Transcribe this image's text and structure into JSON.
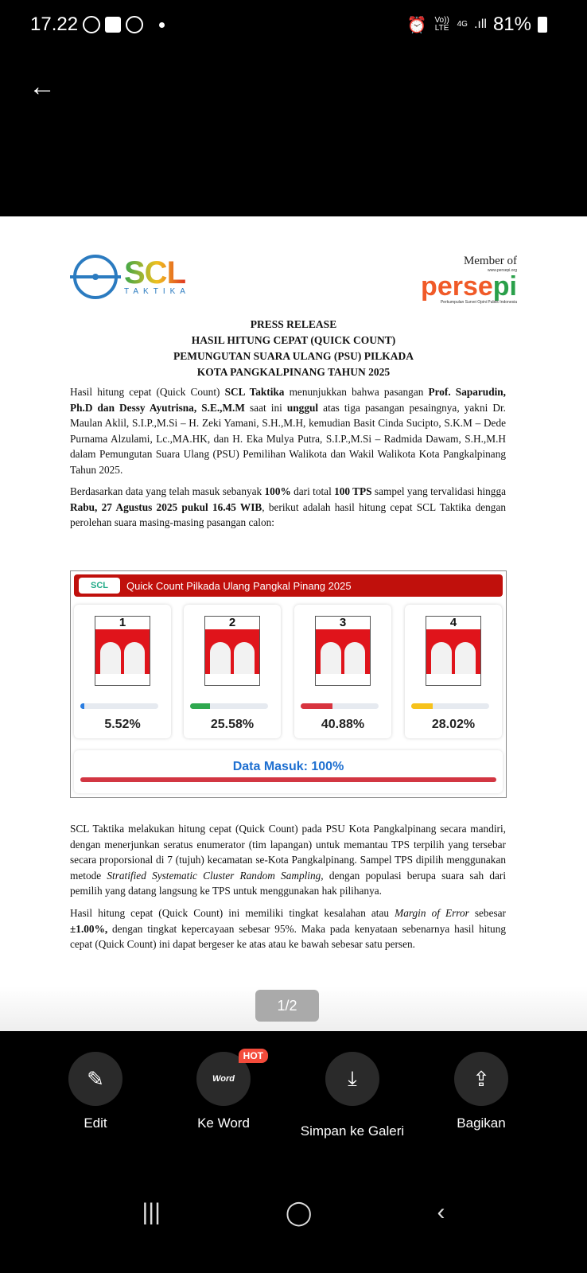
{
  "status_bar": {
    "time": "17.22",
    "network": "4G",
    "volte": "Vo)) LTE",
    "battery": "81%"
  },
  "doc": {
    "logo_left": {
      "name": "SCL",
      "sub": "TAKTIKA"
    },
    "logo_right": {
      "member": "Member of",
      "name_a": "perse",
      "name_b": "pi",
      "url": "www.persepi.org",
      "sub": "Perkumpulan Survei Opini Publik Indonesia"
    },
    "title": [
      "PRESS RELEASE",
      "HASIL HITUNG CEPAT (QUICK COUNT)",
      "PEMUNGUTAN SUARA ULANG (PSU) PILKADA",
      "KOTA PANGKALPINANG TAHUN 2025"
    ],
    "p1": {
      "a": "Hasil hitung cepat (Quick Count) ",
      "b": "SCL Taktika",
      "c": " menunjukkan bahwa pasangan ",
      "d": "Prof. Saparudin, Ph.D dan Dessy Ayutrisna, S.E.,M.M",
      "e": " saat ini ",
      "f": "unggul",
      "g": " atas tiga pasangan pesaingnya, yakni Dr. Maulan Aklil, S.I.P.,M.Si – H. Zeki Yamani, S.H.,M.H, kemudian Basit Cinda Sucipto, S.K.M – Dede Purnama Alzulami, Lc.,MA.HK, dan H. Eka Mulya Putra, S.I.P.,M.Si – Radmida Dawam, S.H.,M.H dalam Pemungutan Suara Ulang (PSU) Pemilihan Walikota dan Wakil Walikota Kota Pangkalpinang Tahun 2025."
    },
    "p2": {
      "a": "Berdasarkan data yang telah masuk sebanyak ",
      "b": "100%",
      "c": " dari total ",
      "d": "100 TPS",
      "e": " sampel yang tervalidasi hingga ",
      "f": "Rabu, 27 Agustus 2025 pukul 16.45 WIB",
      "g": ", berikut adalah hasil hitung cepat SCL Taktika dengan perolehan suara masing-masing pasangan calon:"
    },
    "p3": {
      "a": "SCL Taktika melakukan hitung cepat (Quick Count) pada PSU Kota Pangkalpinang secara mandiri, dengan menerjunkan seratus enumerator (tim lapangan) untuk memantau TPS terpilih yang tersebar secara proporsional di 7 (tujuh) kecamatan se-Kota Pangkalpinang. Sampel TPS dipilih menggunakan metode ",
      "b": "Stratified Systematic Cluster Random Sampling,",
      "c": " dengan populasi berupa suara sah dari pemilih yang datang langsung ke TPS untuk menggunakan hak pilihanya."
    },
    "p4": {
      "a": "Hasil hitung cepat (Quick Count) ini memiliki tingkat kesalahan atau ",
      "b": "Margin of Error",
      "c": " sebesar ",
      "d": "±1.00%,",
      "e": " dengan tingkat kepercayaan sebesar 95%. Maka pada kenyataan sebenarnya hasil hitung cepat (Quick Count) ini dapat bergeser ke atas atau ke bawah sebesar satu persen."
    }
  },
  "chart_data": {
    "type": "bar",
    "title": "Quick Count Pilkada Ulang Pangkal Pinang 2025",
    "categories": [
      "1",
      "2",
      "3",
      "4"
    ],
    "values": [
      5.52,
      25.58,
      40.88,
      28.02
    ],
    "labels": [
      "5.52%",
      "25.58%",
      "40.88%",
      "28.02%"
    ],
    "colors": [
      "#2a7de1",
      "#2fa84f",
      "#d8343f",
      "#f6c21c"
    ],
    "footer": "Data Masuk: 100%",
    "data_in": 100
  },
  "pager": "1/2",
  "toolbar": {
    "edit": "Edit",
    "word": "Ke Word",
    "word_icon": "Word",
    "hot": "HOT",
    "save": "Simpan ke Galeri",
    "share": "Bagikan"
  }
}
